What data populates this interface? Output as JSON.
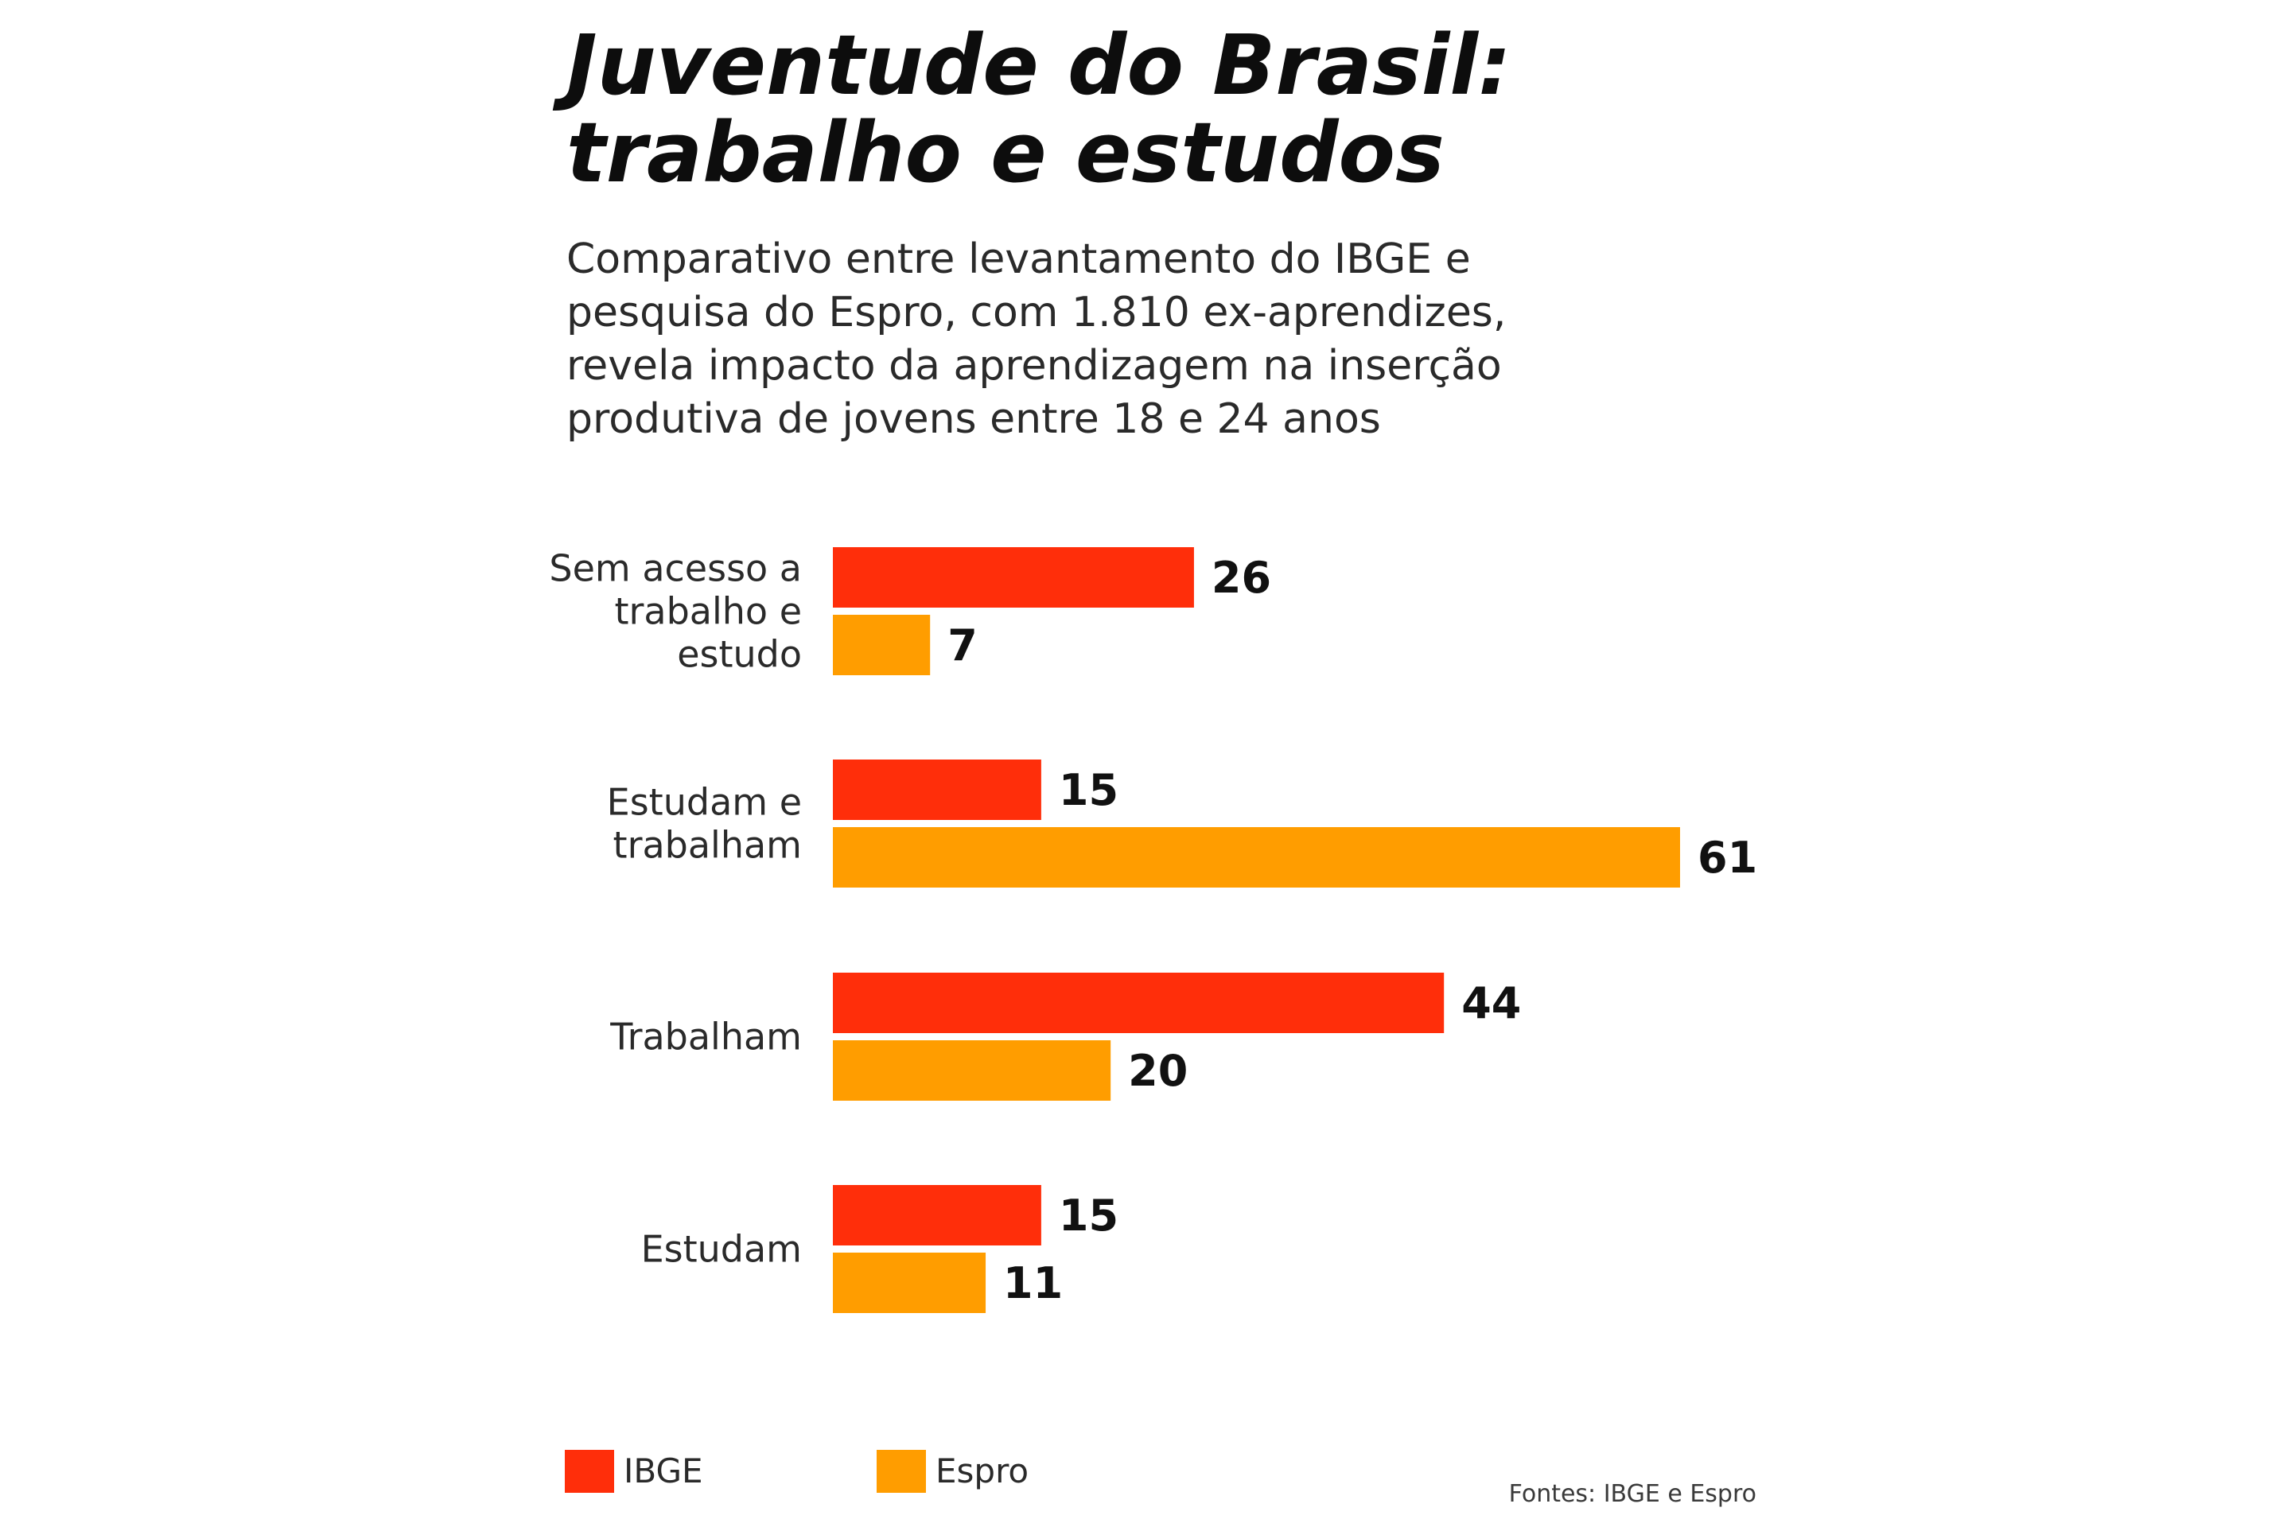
{
  "chart_data": {
    "type": "bar",
    "orientation": "horizontal",
    "title_lines": [
      "Juventude do Brasil:",
      "trabalho e estudos"
    ],
    "subtitle_lines": [
      "Comparativo entre levantamento do IBGE e",
      "pesquisa do Espro, com 1.810 ex-aprendizes,",
      "revela impacto da aprendizagem na inserção",
      "produtiva de jovens entre 18 e 24 anos"
    ],
    "categories": [
      {
        "lines": [
          "Sem acesso a",
          "trabalho e",
          "estudo"
        ]
      },
      {
        "lines": [
          "Estudam e",
          "trabalham"
        ]
      },
      {
        "lines": [
          "Trabalham"
        ]
      },
      {
        "lines": [
          "Estudam"
        ]
      }
    ],
    "series": [
      {
        "name": "IBGE",
        "color": "#ff2e0a",
        "values": [
          26,
          15,
          44,
          15
        ]
      },
      {
        "name": "Espro",
        "color": "#ff9d00",
        "values": [
          7,
          61,
          20,
          11
        ]
      }
    ],
    "xlim": [
      0,
      61
    ],
    "grid": false,
    "legend_position": "bottom-left",
    "source": "Fontes: IBGE e Espro"
  }
}
